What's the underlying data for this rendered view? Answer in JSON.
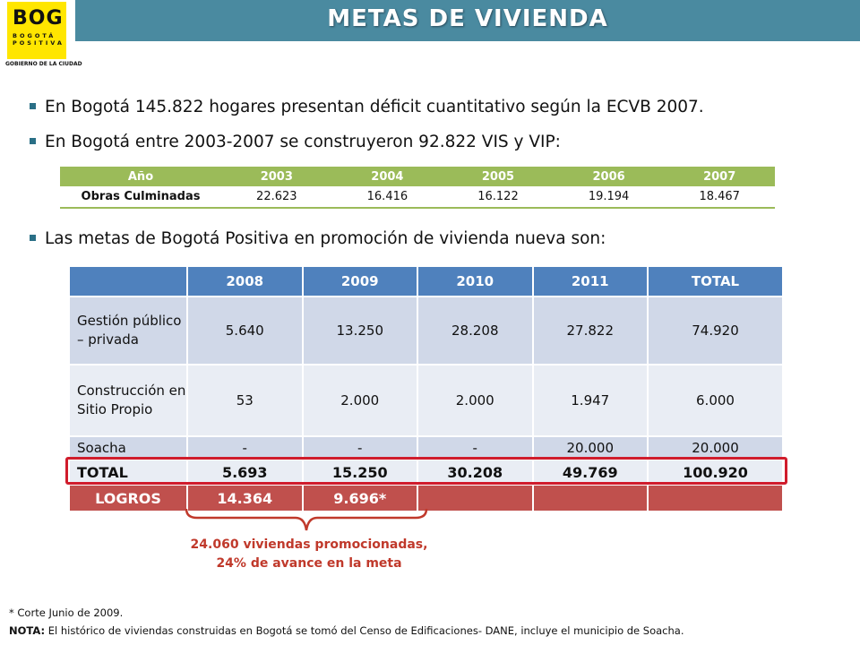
{
  "header": {
    "title": "METAS DE VIVIENDA",
    "logo": {
      "main": "BOG",
      "line1": "BOGOTÁ",
      "line2": "POSITIVA",
      "footer": "GOBIERNO DE LA CIUDAD"
    }
  },
  "bullets": [
    "En Bogotá 145.822 hogares presentan déficit cuantitativo según la ECVB 2007.",
    "En Bogotá entre 2003-2007 se construyeron 92.822 VIS y VIP:",
    "Las metas de Bogotá Positiva en promoción de vivienda nueva son:"
  ],
  "history_table": {
    "headers": [
      "Año",
      "2003",
      "2004",
      "2005",
      "2006",
      "2007"
    ],
    "row_label": "Obras Culminadas",
    "values": [
      "22.623",
      "16.416",
      "16.122",
      "19.194",
      "18.467"
    ]
  },
  "goals_table": {
    "headers": [
      "",
      "2008",
      "2009",
      "2010",
      "2011",
      "TOTAL"
    ],
    "rows": [
      {
        "label": "Gestión público – privada",
        "values": [
          "5.640",
          "13.250",
          "28.208",
          "27.822",
          "74.920"
        ]
      },
      {
        "label": "Construcción en Sitio Propio",
        "values": [
          "53",
          "2.000",
          "2.000",
          "1.947",
          "6.000"
        ]
      },
      {
        "label": "Soacha",
        "values": [
          "-",
          "-",
          "-",
          "20.000",
          "20.000"
        ]
      },
      {
        "label": "TOTAL",
        "values": [
          "5.693",
          "15.250",
          "30.208",
          "49.769",
          "100.920"
        ]
      },
      {
        "label": "LOGROS",
        "values": [
          "14.364",
          "9.696*",
          "",
          "",
          ""
        ]
      }
    ],
    "highlight_color": "#d01c2c"
  },
  "annotation": {
    "line1": "24.060 viviendas promocionadas,",
    "line2": "24% de avance en la meta",
    "color": "#c0392b"
  },
  "footnotes": {
    "note1": "* Corte Junio de 2009.",
    "note2_label": "NOTA:",
    "note2_text": " El histórico de viviendas construidas en Bogotá se tomó del Censo de Edificaciones- DANE, incluye el municipio de Soacha."
  }
}
